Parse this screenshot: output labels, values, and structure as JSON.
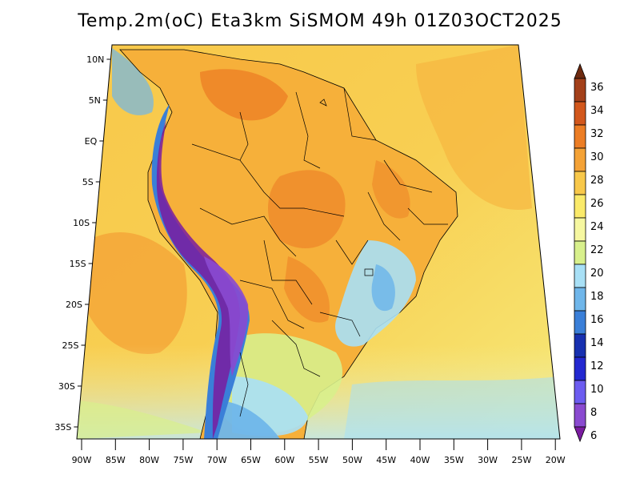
{
  "title": "Temp.2m(oC) Eta3km SiSMOM 49h 01Z03OCT2025",
  "lat_labels": [
    "10N",
    "5N",
    "EQ",
    "5S",
    "10S",
    "15S",
    "20S",
    "25S",
    "30S",
    "35S"
  ],
  "lon_labels": [
    "90W",
    "85W",
    "80W",
    "75W",
    "70W",
    "65W",
    "60W",
    "55W",
    "50W",
    "45W",
    "40W",
    "35W",
    "30W",
    "25W",
    "20W"
  ],
  "colorbar": {
    "labels": [
      "36",
      "34",
      "32",
      "30",
      "28",
      "26",
      "24",
      "22",
      "20",
      "18",
      "16",
      "14",
      "12",
      "10",
      "8",
      "6"
    ],
    "colors": [
      "#6e2a10",
      "#a3401a",
      "#d2571c",
      "#ec7d24",
      "#f4a236",
      "#f8c84a",
      "#faea6a",
      "#f6f7a0",
      "#d8f08c",
      "#a8e0f6",
      "#6fb6ea",
      "#3a7fd8",
      "#1730b0",
      "#2328d0",
      "#6c5cf0",
      "#8a4ad0",
      "#7a1ca0"
    ]
  }
}
